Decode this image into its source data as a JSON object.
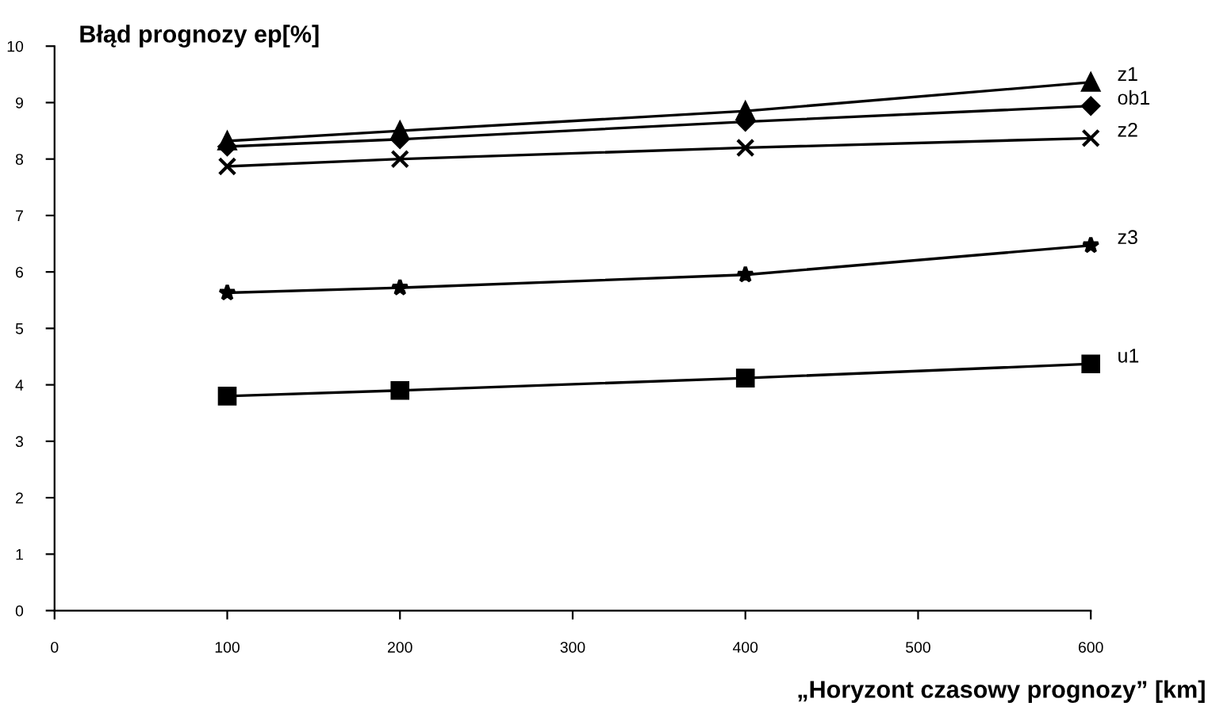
{
  "chart_data": {
    "type": "line",
    "ylabel": "Błąd prognozy ep[%]",
    "xlabel": "„Horyzont czasowy prognozy” [km]",
    "xlim": [
      0,
      600
    ],
    "xticks": [
      0,
      100,
      200,
      300,
      400,
      500,
      600
    ],
    "ylim": [
      0,
      10
    ],
    "yticks": [
      0,
      1,
      2,
      3,
      4,
      5,
      6,
      7,
      8,
      9,
      10
    ],
    "grid": false,
    "legend": false,
    "line_style": "solid",
    "x": [
      100,
      200,
      400,
      600
    ],
    "series": [
      {
        "name": "z1",
        "color": "#000000",
        "marker": "triangle",
        "values": [
          8.32,
          8.5,
          8.85,
          9.36
        ]
      },
      {
        "name": "ob1",
        "color": "#000000",
        "marker": "diamond",
        "values": [
          8.22,
          8.35,
          8.66,
          8.94
        ]
      },
      {
        "name": "z2",
        "color": "#000000",
        "marker": "cross",
        "values": [
          7.87,
          8.0,
          8.2,
          8.37
        ]
      },
      {
        "name": "z3",
        "color": "#000000",
        "marker": "star",
        "values": [
          5.63,
          5.72,
          5.95,
          6.47
        ]
      },
      {
        "name": "u1",
        "color": "#000000",
        "marker": "square",
        "values": [
          3.8,
          3.9,
          4.12,
          4.37
        ]
      }
    ]
  }
}
